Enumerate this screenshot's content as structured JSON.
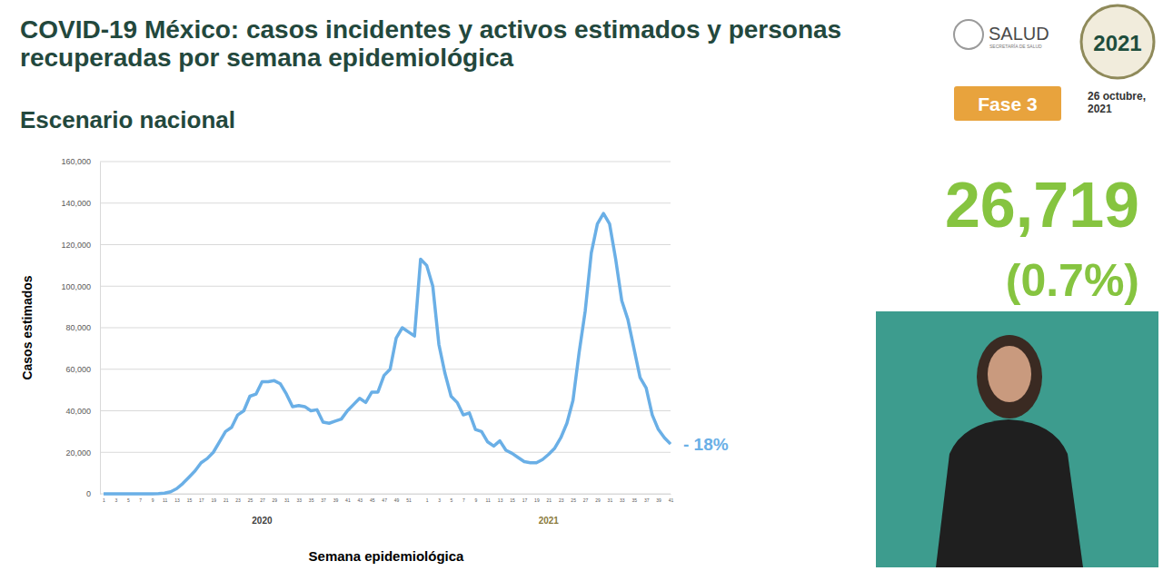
{
  "chart_data": {
    "type": "line",
    "title": "COVID-19 México: casos incidentes y activos estimados y personas recuperadas por semana epidemiológica",
    "subtitle": "Escenario nacional",
    "x_label": "Semana epidemiológica",
    "y_label": "Casos estimados",
    "categories": [
      "1",
      null,
      "3",
      null,
      "5",
      null,
      "7",
      null,
      "9",
      null,
      "11",
      null,
      "13",
      null,
      "15",
      null,
      "17",
      null,
      "19",
      null,
      "21",
      null,
      "23",
      null,
      "25",
      null,
      "27",
      null,
      "29",
      null,
      "31",
      null,
      "33",
      null,
      "35",
      null,
      "37",
      null,
      "39",
      null,
      "41",
      null,
      "43",
      null,
      "45",
      null,
      "47",
      null,
      "49",
      null,
      "51",
      null,
      null,
      "1",
      null,
      "3",
      null,
      "5",
      null,
      "7",
      null,
      "9",
      null,
      "11",
      null,
      "13",
      null,
      "15",
      null,
      "17",
      null,
      "19",
      null,
      "21",
      null,
      "23",
      null,
      "25",
      null,
      "27",
      null,
      "29",
      null,
      "31",
      null,
      "33",
      null,
      "35",
      null,
      "37",
      null,
      "39",
      null,
      "41"
    ],
    "x_groups": [
      {
        "label": "2020",
        "size": 53
      },
      {
        "label": "2021",
        "size": 41
      }
    ],
    "values": [
      0,
      0,
      0,
      0,
      0,
      0,
      0,
      0,
      0,
      100,
      300,
      1000,
      2500,
      5000,
      8000,
      11000,
      15000,
      17000,
      20000,
      25000,
      30000,
      32000,
      38000,
      40000,
      47000,
      48000,
      54000,
      54000,
      54500,
      53000,
      48000,
      42000,
      42500,
      42000,
      40000,
      40500,
      34500,
      34000,
      35000,
      36000,
      40000,
      43000,
      46000,
      44000,
      49000,
      49000,
      57000,
      60000,
      75000,
      80000,
      78000,
      76000,
      113000,
      110000,
      100000,
      72000,
      58000,
      47000,
      44000,
      38000,
      39000,
      31000,
      30000,
      25000,
      23000,
      25500,
      21000,
      19500,
      17500,
      15500,
      15000,
      15000,
      16500,
      19000,
      22000,
      27000,
      34000,
      45000,
      68000,
      88000,
      116000,
      130000,
      135000,
      130000,
      113000,
      93000,
      84000,
      70000,
      56000,
      51000,
      38000,
      31000,
      27000,
      24000
    ],
    "color": "#6aafe6",
    "annotations": [
      {
        "text": "- 18%"
      }
    ],
    "ylim": [
      0,
      160000
    ],
    "yticks": [
      0,
      {
        "value": 20000,
        "label": "20,000"
      },
      {
        "value": 40000,
        "label": "40,000"
      },
      {
        "value": 60000,
        "label": "60,000"
      },
      {
        "value": 80000,
        "label": "80,000"
      },
      {
        "value": 100000,
        "label": "100,000"
      },
      {
        "value": 120000,
        "label": "120,000"
      },
      {
        "value": 140000,
        "label": "140,000"
      },
      {
        "value": 160000,
        "label": "160,000"
      }
    ],
    "grid": true
  },
  "header": {
    "logo": "SALUD",
    "logo_subtitle": "SECRETARÍA DE SALUD",
    "emblem_year": "2021",
    "phase": "Fase 3",
    "date": "26 octubre, 2021"
  },
  "indicator": {
    "active_cases": "26,719",
    "percent": "(0.7%)"
  }
}
